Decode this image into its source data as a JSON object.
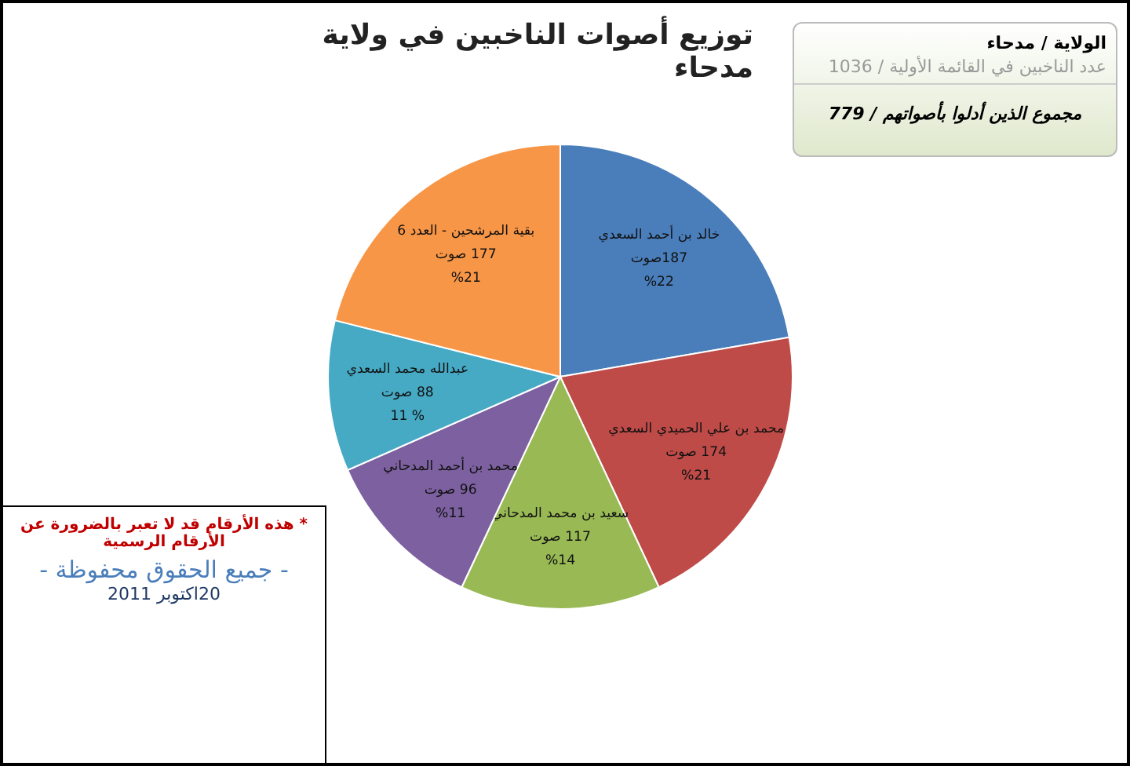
{
  "chart_data": {
    "type": "pie",
    "title": "توزيع أصوات الناخبين في ولاية مدحاء",
    "categories": [
      "خالد بن أحمد السعدي",
      "محمد بن علي الحميدي السعدي",
      "سعيد بن محمد المدحاني",
      "محمد بن أحمد المدحاني",
      "عبدالله محمد السعدي",
      "بقية المرشحين - العدد 6"
    ],
    "values": [
      187,
      174,
      117,
      96,
      88,
      177
    ],
    "value_labels": [
      "187صوت\n%22",
      "174 صوت\n%21",
      "117 صوت\n%14",
      "96 صوت\n%11",
      "88 صوت\n% 11",
      "177 صوت\n%21"
    ],
    "colors": [
      "#4a7ebb",
      "#be4b48",
      "#98b954",
      "#7d60a0",
      "#46aac5",
      "#f79646"
    ],
    "annotations": [
      "الولاية / مدحاء",
      "عدد الناخبين في القائمة الأولية / 1036",
      "مجموع الذين أدلوا بأصواتهم / 779",
      "* هذه الأرقام قد لا تعبر بالضرورة عن الأرقام الرسمية",
      "- جميع الحقوق محفوظة -",
      "20اكتوبر 2011"
    ]
  }
}
